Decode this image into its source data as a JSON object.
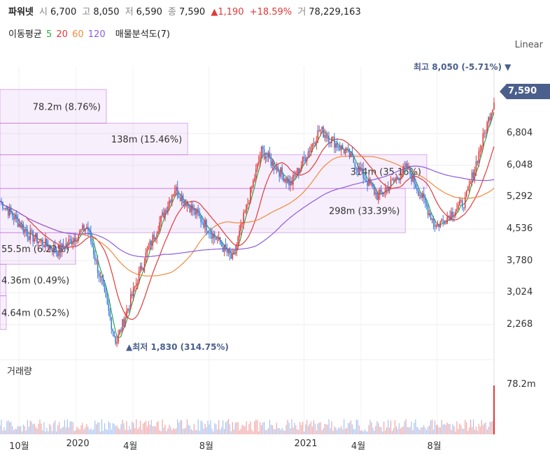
{
  "header": {
    "name": "파워넷",
    "open_label": "시",
    "open": "6,700",
    "high_label": "고",
    "high": "8,050",
    "low_label": "저",
    "low": "6,590",
    "close_label": "종",
    "close": "7,590",
    "change": "▲1,190",
    "change_pct": "+18.59%",
    "volume_label": "거",
    "volume": "78,229,163"
  },
  "legend": {
    "ma_label": "이동평균",
    "ma_periods": [
      {
        "label": "5",
        "color": "#2ea84a"
      },
      {
        "label": "20",
        "color": "#e03a3a"
      },
      {
        "label": "60",
        "color": "#f08a3c"
      },
      {
        "label": "120",
        "color": "#8c5ce0"
      }
    ],
    "profile_label": "매물분석도(7)"
  },
  "scale_label": "Linear",
  "current_price_tag": "7,590",
  "high_marker": "최고 8,050 (-5.71%) ▼",
  "low_marker": "▲최저 1,830 (314.75%)",
  "volume_title": "거래량",
  "volume_max_label": "78.2m",
  "chart_data": {
    "type": "candlestick",
    "y_ticks": [
      "6,804",
      "6,048",
      "5,292",
      "4,536",
      "3,780",
      "3,024",
      "2,268"
    ],
    "y_tick_values": [
      6804,
      6048,
      5292,
      4536,
      3780,
      3024,
      2268
    ],
    "ylim": [
      1600,
      8400
    ],
    "x_labels": [
      "10월",
      "2020",
      "4월",
      "8월",
      "2021",
      "4월",
      "8월"
    ],
    "high": 8050,
    "low": 1830,
    "last": 7590,
    "moving_averages": [
      "5",
      "20",
      "60",
      "120"
    ],
    "volume_profile": [
      {
        "label": "78.2m (8.76%)",
        "price_from": 7050,
        "price_to": 7850,
        "share": 8.76
      },
      {
        "label": "138m (15.46%)",
        "price_from": 6300,
        "price_to": 7050,
        "share": 15.46
      },
      {
        "label": "314m (35.16%)",
        "price_from": 5500,
        "price_to": 6300,
        "share": 35.16
      },
      {
        "label": "298m (33.39%)",
        "price_from": 4450,
        "price_to": 5500,
        "share": 33.39
      },
      {
        "label": "55.5m (6.22%)",
        "price_from": 3700,
        "price_to": 4450,
        "share": 6.22
      },
      {
        "label": "4.36m (0.49%)",
        "price_from": 2950,
        "price_to": 3700,
        "share": 0.49
      },
      {
        "label": "4.64m (0.52%)",
        "price_from": 2150,
        "price_to": 2950,
        "share": 0.52
      }
    ],
    "key_points": [
      {
        "period": "2019-09",
        "close": 5200
      },
      {
        "period": "2019-10",
        "close": 4400
      },
      {
        "period": "2019-12",
        "close": 4000
      },
      {
        "period": "2020-01",
        "close": 4600
      },
      {
        "period": "2020-03",
        "close": 1830
      },
      {
        "period": "2020-05",
        "close": 3900
      },
      {
        "period": "2020-06",
        "close": 5500
      },
      {
        "period": "2020-08",
        "close": 4700
      },
      {
        "period": "2020-09",
        "close": 3800
      },
      {
        "period": "2020-10",
        "close": 6400
      },
      {
        "period": "2020-12",
        "close": 5600
      },
      {
        "period": "2021-01",
        "close": 6900
      },
      {
        "period": "2021-03",
        "close": 6300
      },
      {
        "period": "2021-05",
        "close": 5300
      },
      {
        "period": "2021-07",
        "close": 6000
      },
      {
        "period": "2021-09",
        "close": 4600
      },
      {
        "period": "2021-10",
        "close": 5200
      },
      {
        "period": "2021-11",
        "close": 7590
      }
    ]
  }
}
